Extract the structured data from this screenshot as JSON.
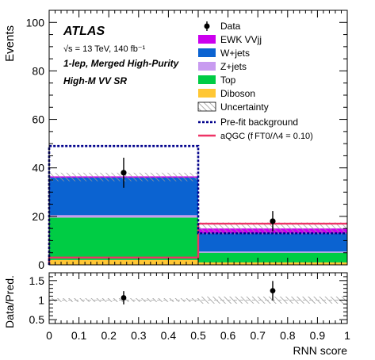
{
  "chart_data": [
    {
      "type": "bar",
      "stacked": true,
      "bin_edges": [
        0,
        0.5,
        1.0
      ],
      "xlim": [
        0,
        1.0
      ],
      "ylim": [
        0,
        105
      ],
      "ylabel": "Events",
      "y_ticks": [
        "0",
        "20",
        "40",
        "60",
        "80",
        "100"
      ],
      "y_tick_values": [
        0,
        20,
        40,
        60,
        80,
        100
      ],
      "series": [
        {
          "name": "Diboson",
          "color": "#ffc734",
          "values": [
            2.0,
            1.0
          ]
        },
        {
          "name": "Top",
          "color": "#00cc44",
          "values": [
            17.5,
            4.0
          ]
        },
        {
          "name": "Z+jets",
          "color": "#c89bf0",
          "values": [
            1.0,
            0.5
          ]
        },
        {
          "name": "W+jets",
          "color": "#0b63d1",
          "values": [
            15.5,
            7.5
          ]
        },
        {
          "name": "EWK VVjj",
          "color": "#cc00ee",
          "values": [
            0.5,
            2.0
          ]
        }
      ],
      "uncertainty_band": {
        "lower": [
          34.5,
          12.5
        ],
        "upper": [
          38.0,
          17.5
        ]
      },
      "data_points": {
        "x": [
          0.25,
          0.75
        ],
        "y": [
          38.0,
          18.0
        ],
        "yerr": [
          6.2,
          4.2
        ]
      },
      "prefit_background": {
        "values": [
          49.0,
          13.0
        ],
        "color": "#00008b"
      },
      "aqgc_signal": {
        "values": [
          3.0,
          17.0
        ],
        "color": "#ee3366"
      },
      "legend": {
        "placement": "top-right",
        "data": "Data",
        "ewk": "EWK VVjj",
        "wjets": "W+jets",
        "zjets": "Z+jets",
        "top": "Top",
        "diboson": "Diboson",
        "uncertainty": "Uncertainty",
        "prefit": "Pre-fit background",
        "aqgc": "aQGC (f FT0/Λ4 = 0.10)"
      },
      "annotations": {
        "experiment": "ATLAS",
        "energy": "√s = 13 TeV, 140 fb⁻¹",
        "channel": "1-lep, Merged High-Purity",
        "region": "High-M VV SR"
      }
    },
    {
      "type": "scatter",
      "ylabel": "Data/Pred.",
      "xlabel": "RNN score",
      "xlim": [
        0,
        1.0
      ],
      "ylim": [
        0.4,
        1.7
      ],
      "x_ticks": [
        "0",
        "0.1",
        "0.2",
        "0.3",
        "0.4",
        "0.5",
        "0.6",
        "0.7",
        "0.8",
        "0.9",
        "1"
      ],
      "x_tick_values": [
        0,
        0.1,
        0.2,
        0.3,
        0.4,
        0.5,
        0.6,
        0.7,
        0.8,
        0.9,
        1.0
      ],
      "y_ticks": [
        "0.5",
        "1",
        "1.5"
      ],
      "y_tick_values": [
        0.5,
        1.0,
        1.5
      ],
      "ratio_points": {
        "x": [
          0.25,
          0.75
        ],
        "y": [
          1.06,
          1.24
        ],
        "yerr": [
          0.17,
          0.25
        ]
      },
      "uncertainty_band": {
        "lower": [
          0.95,
          0.91
        ],
        "upper": [
          1.05,
          1.09
        ]
      },
      "reference_line": 1.0
    }
  ]
}
